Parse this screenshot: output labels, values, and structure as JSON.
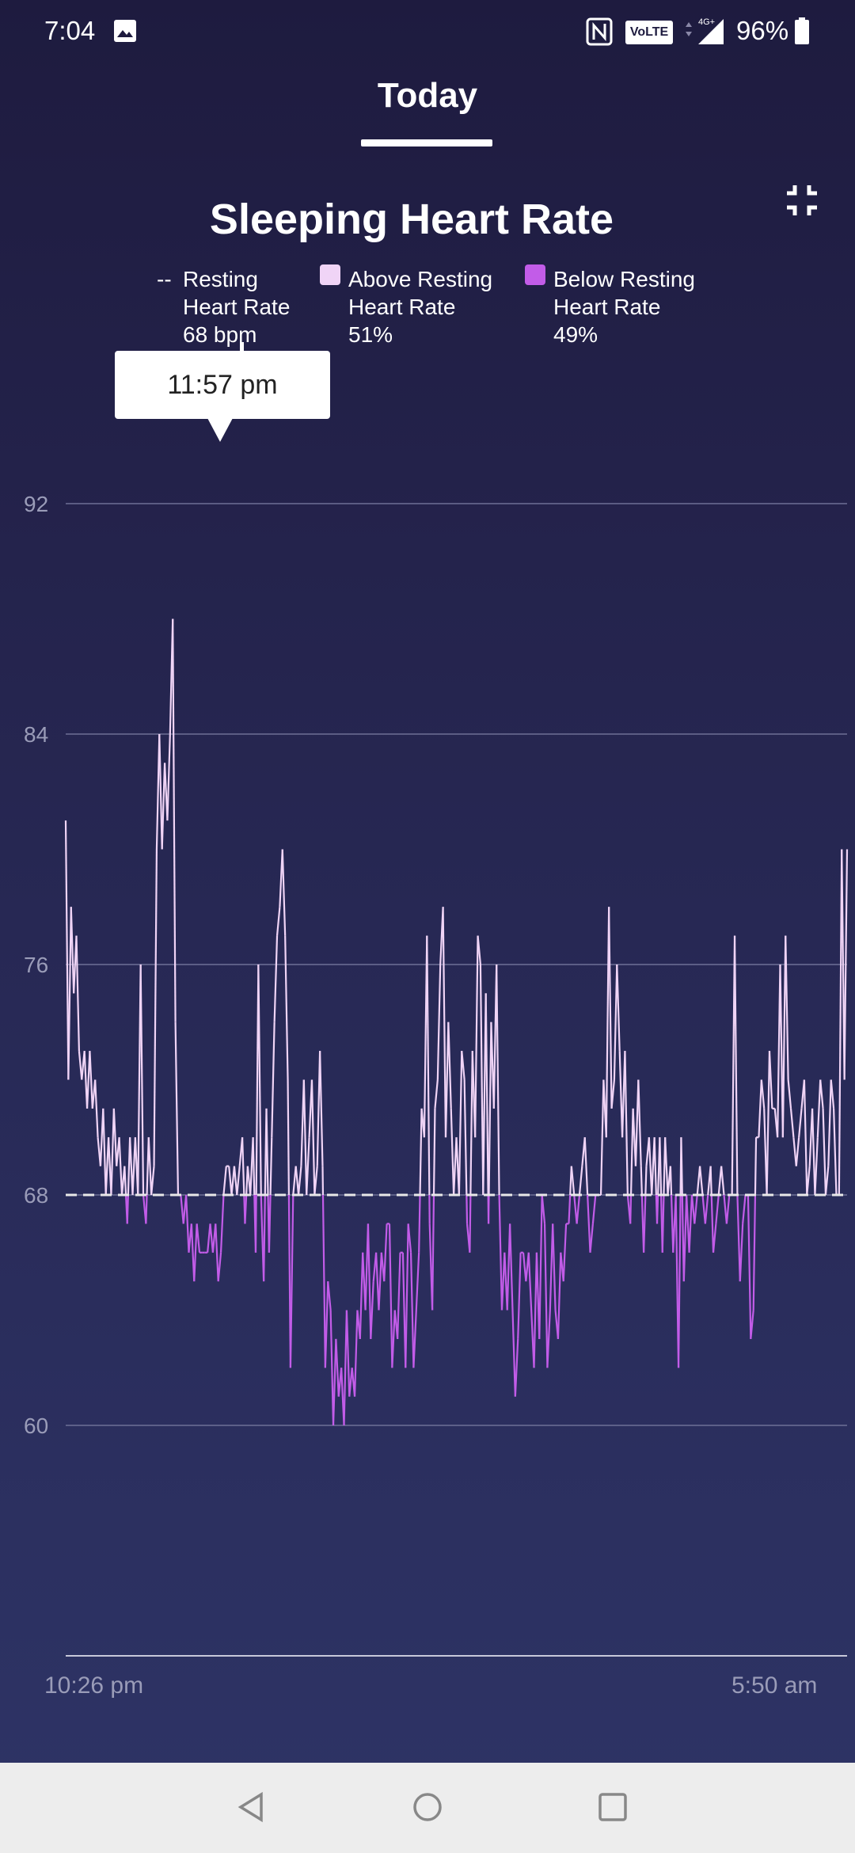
{
  "status_bar": {
    "time": "7:04",
    "network_badge": "VoLTE",
    "network_type": "4G+",
    "battery_percent": "96%",
    "icons": [
      "gallery-icon",
      "nfc-icon",
      "volte-icon",
      "signal-icon",
      "battery-icon"
    ]
  },
  "tabs": {
    "active": "Today"
  },
  "chart_data": {
    "type": "line",
    "title": "Sleeping Heart Rate",
    "legend": [
      {
        "marker": "--",
        "label": "Resting Heart Rate",
        "value": "68 bpm"
      },
      {
        "marker": "swatch",
        "color": "#f0d4f6",
        "label": "Above Resting Heart Rate",
        "value": "51%"
      },
      {
        "marker": "swatch",
        "color": "#c25ce8",
        "label": "Below Resting Heart Rate",
        "value": "49%"
      }
    ],
    "tooltip": "11:57 pm",
    "resting_heart_rate": 68,
    "ylim": [
      52,
      92
    ],
    "y_ticks": [
      92,
      84,
      76,
      68,
      60
    ],
    "x_range_labels": [
      "10:26 pm",
      "5:50 am"
    ],
    "grid": true,
    "colors": {
      "above": "#f0d4f6",
      "below": "#c25ce8",
      "baseline": "#e8e8e8"
    },
    "series": [
      {
        "values": [
          81,
          72,
          78,
          75,
          77,
          73,
          72,
          73,
          71,
          73,
          71,
          72,
          70,
          69,
          71,
          68,
          70,
          68,
          71,
          69,
          70,
          68,
          69,
          67,
          70,
          68,
          70,
          68,
          76,
          68,
          67,
          70,
          68,
          69,
          80,
          84,
          80,
          83,
          81,
          84,
          88,
          74,
          68,
          68,
          67,
          68,
          66,
          67,
          65,
          67,
          66,
          66,
          66,
          66,
          67,
          66,
          67,
          65,
          66,
          68,
          69,
          69,
          68,
          69,
          68,
          69,
          70,
          67,
          69,
          68,
          70,
          66,
          76,
          68,
          65,
          71,
          66,
          70,
          74,
          77,
          78,
          80,
          77,
          72,
          62,
          68,
          69,
          68,
          69,
          72,
          68,
          70,
          72,
          68,
          69,
          73,
          69,
          62,
          65,
          64,
          60,
          63,
          61,
          62,
          60,
          64,
          61,
          62,
          61,
          64,
          63,
          66,
          64,
          67,
          63,
          65,
          66,
          64,
          66,
          65,
          67,
          67,
          62,
          64,
          63,
          66,
          66,
          62,
          67,
          66,
          62,
          64,
          66,
          71,
          70,
          77,
          67,
          64,
          71,
          72,
          76,
          78,
          70,
          74,
          71,
          68,
          70,
          68,
          73,
          72,
          67,
          66,
          73,
          70,
          77,
          76,
          68,
          75,
          67,
          74,
          71,
          76,
          68,
          64,
          66,
          64,
          67,
          64,
          61,
          63,
          66,
          66,
          65,
          66,
          64,
          62,
          66,
          63,
          68,
          67,
          62,
          64,
          67,
          64,
          63,
          66,
          65,
          67,
          67,
          69,
          68,
          67,
          68,
          69,
          70,
          68,
          66,
          67,
          68,
          68,
          68,
          72,
          70,
          78,
          71,
          72,
          76,
          73,
          70,
          73,
          68,
          67,
          71,
          69,
          72,
          69,
          66,
          69,
          70,
          68,
          70,
          67,
          70,
          66,
          70,
          68,
          69,
          66,
          68,
          62,
          70,
          65,
          68,
          66,
          68,
          67,
          68,
          69,
          68,
          67,
          68,
          69,
          66,
          67,
          68,
          69,
          68,
          67,
          68,
          68,
          77,
          68,
          65,
          67,
          68,
          68,
          63,
          64,
          70,
          70,
          72,
          71,
          68,
          73,
          71,
          71,
          70,
          76,
          70,
          77,
          72,
          71,
          70,
          69,
          70,
          71,
          72,
          68,
          69,
          71,
          68,
          70,
          72,
          71,
          68,
          69,
          72,
          71,
          68,
          68,
          80,
          72,
          80
        ]
      }
    ]
  },
  "nav_bar": {
    "icons": [
      "back-icon",
      "home-icon",
      "recents-icon"
    ]
  }
}
